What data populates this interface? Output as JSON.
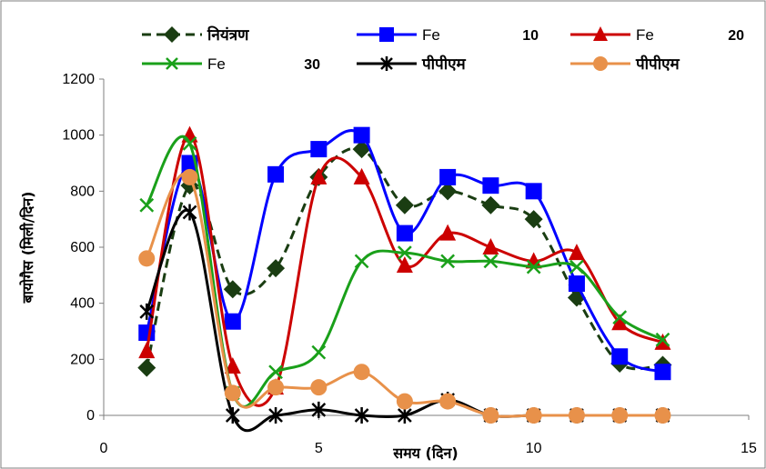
{
  "chart_data": {
    "type": "line",
    "xlabel": "समय (दिन)",
    "ylabel": "बायोगैस (मिली/दिन)",
    "xlim": [
      0,
      15
    ],
    "ylim": [
      0,
      1200
    ],
    "xticks": [
      0,
      5,
      10,
      15
    ],
    "yticks": [
      0,
      200,
      400,
      600,
      800,
      1000,
      1200
    ],
    "grid": false,
    "legend_position": "top",
    "series": [
      {
        "name": "नियंत्रण",
        "suffix": "",
        "color": "#1a3d12",
        "dash": true,
        "marker": "diamond",
        "x": [
          1,
          2,
          3,
          4,
          5,
          6,
          7,
          8,
          9,
          10,
          11,
          12,
          13
        ],
        "y": [
          170,
          820,
          450,
          525,
          850,
          950,
          750,
          800,
          750,
          700,
          420,
          185,
          180
        ]
      },
      {
        "name": "Fe",
        "suffix": "10",
        "color": "#0000ff",
        "dash": false,
        "marker": "square",
        "x": [
          1,
          2,
          3,
          4,
          5,
          6,
          7,
          8,
          9,
          10,
          11,
          12,
          13
        ],
        "y": [
          295,
          900,
          335,
          860,
          950,
          1000,
          650,
          850,
          820,
          800,
          470,
          210,
          155
        ]
      },
      {
        "name": "Fe",
        "suffix": "20",
        "color": "#cc0000",
        "dash": false,
        "marker": "triangle",
        "x": [
          1,
          2,
          3,
          4,
          5,
          6,
          7,
          8,
          9,
          10,
          11,
          12,
          13
        ],
        "y": [
          230,
          1000,
          175,
          100,
          850,
          850,
          535,
          650,
          600,
          550,
          580,
          330,
          260
        ]
      },
      {
        "name": "Fe",
        "suffix": "30",
        "color": "#1aa01a",
        "dash": false,
        "marker": "x",
        "x": [
          1,
          2,
          3,
          4,
          5,
          6,
          7,
          8,
          9,
          10,
          11,
          12,
          13
        ],
        "y": [
          750,
          970,
          80,
          155,
          225,
          550,
          580,
          550,
          550,
          530,
          530,
          350,
          270
        ]
      },
      {
        "name": "पीपीएम",
        "suffix": "",
        "color": "#000000",
        "dash": false,
        "marker": "star",
        "x": [
          1,
          2,
          3,
          4,
          5,
          6,
          7,
          8,
          9,
          10,
          11,
          12,
          13
        ],
        "y": [
          370,
          725,
          0,
          0,
          20,
          0,
          0,
          55,
          0,
          0,
          0,
          0,
          0
        ]
      },
      {
        "name": "पीपीएम",
        "suffix": "",
        "color": "#e8914a",
        "dash": false,
        "marker": "circle",
        "x": [
          1,
          2,
          3,
          4,
          5,
          6,
          7,
          8,
          9,
          10,
          11,
          12,
          13
        ],
        "y": [
          560,
          850,
          80,
          100,
          100,
          155,
          50,
          50,
          0,
          0,
          0,
          0,
          0
        ]
      }
    ]
  }
}
